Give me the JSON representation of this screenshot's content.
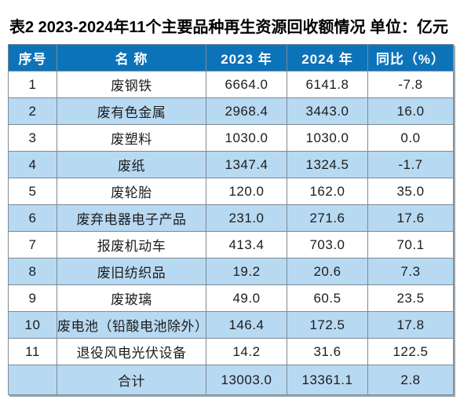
{
  "title": "表2 2023-2024年11个主要品种再生资源回收额情况 单位：亿元",
  "table": {
    "headers": [
      "序号",
      "名 称",
      "2023 年",
      "2024 年",
      "同比（%）"
    ],
    "rows": [
      {
        "no": "1",
        "name": "废钢铁",
        "y2023": "6664.0",
        "y2024": "6141.8",
        "yoy": "-7.8"
      },
      {
        "no": "2",
        "name": "废有色金属",
        "y2023": "2968.4",
        "y2024": "3443.0",
        "yoy": "16.0"
      },
      {
        "no": "3",
        "name": "废塑料",
        "y2023": "1030.0",
        "y2024": "1030.0",
        "yoy": "0.0"
      },
      {
        "no": "4",
        "name": "废纸",
        "y2023": "1347.4",
        "y2024": "1324.5",
        "yoy": "-1.7"
      },
      {
        "no": "5",
        "name": "废轮胎",
        "y2023": "120.0",
        "y2024": "162.0",
        "yoy": "35.0"
      },
      {
        "no": "6",
        "name": "废弃电器电子产品",
        "y2023": "231.0",
        "y2024": "271.6",
        "yoy": "17.6"
      },
      {
        "no": "7",
        "name": "报废机动车",
        "y2023": "413.4",
        "y2024": "703.0",
        "yoy": "70.1"
      },
      {
        "no": "8",
        "name": "废旧纺织品",
        "y2023": "19.2",
        "y2024": "20.6",
        "yoy": "7.3"
      },
      {
        "no": "9",
        "name": "废玻璃",
        "y2023": "49.0",
        "y2024": "60.5",
        "yoy": "23.5"
      },
      {
        "no": "10",
        "name": "废电池（铅酸电池除外）",
        "y2023": "146.4",
        "y2024": "172.5",
        "yoy": "17.8"
      },
      {
        "no": "11",
        "name": "退役风电光伏设备",
        "y2023": "14.2",
        "y2024": "31.6",
        "yoy": "122.5"
      }
    ],
    "total": {
      "no": "",
      "name": "合计",
      "y2023": "13003.0",
      "y2024": "13361.1",
      "yoy": "2.8"
    }
  },
  "chart_data": {
    "type": "table",
    "title": "表2 2023-2024年11个主要品种再生资源回收额情况",
    "unit": "亿元",
    "columns": [
      "序号",
      "名 称",
      "2023 年",
      "2024 年",
      "同比（%）"
    ],
    "categories": [
      "废钢铁",
      "废有色金属",
      "废塑料",
      "废纸",
      "废轮胎",
      "废弃电器电子产品",
      "报废机动车",
      "废旧纺织品",
      "废玻璃",
      "废电池（铅酸电池除外）",
      "退役风电光伏设备"
    ],
    "series": [
      {
        "name": "2023 年",
        "values": [
          6664.0,
          2968.4,
          1030.0,
          1347.4,
          120.0,
          231.0,
          413.4,
          19.2,
          49.0,
          146.4,
          14.2
        ]
      },
      {
        "name": "2024 年",
        "values": [
          6141.8,
          3443.0,
          1030.0,
          1324.5,
          162.0,
          271.6,
          703.0,
          20.6,
          60.5,
          172.5,
          31.6
        ]
      },
      {
        "name": "同比（%）",
        "values": [
          -7.8,
          16.0,
          0.0,
          -1.7,
          35.0,
          17.6,
          70.1,
          7.3,
          23.5,
          17.8,
          122.5
        ]
      }
    ],
    "total": {
      "name": "合计",
      "2023": 13003.0,
      "2024": 13361.1,
      "yoy_pct": 2.8
    }
  },
  "colors": {
    "header_bg": "#0d73b9",
    "header_text": "#ffffff",
    "alt_row_bg": "#b8d9f2",
    "grid_line": "#7d8993",
    "body_text": "#1c1c1c"
  }
}
